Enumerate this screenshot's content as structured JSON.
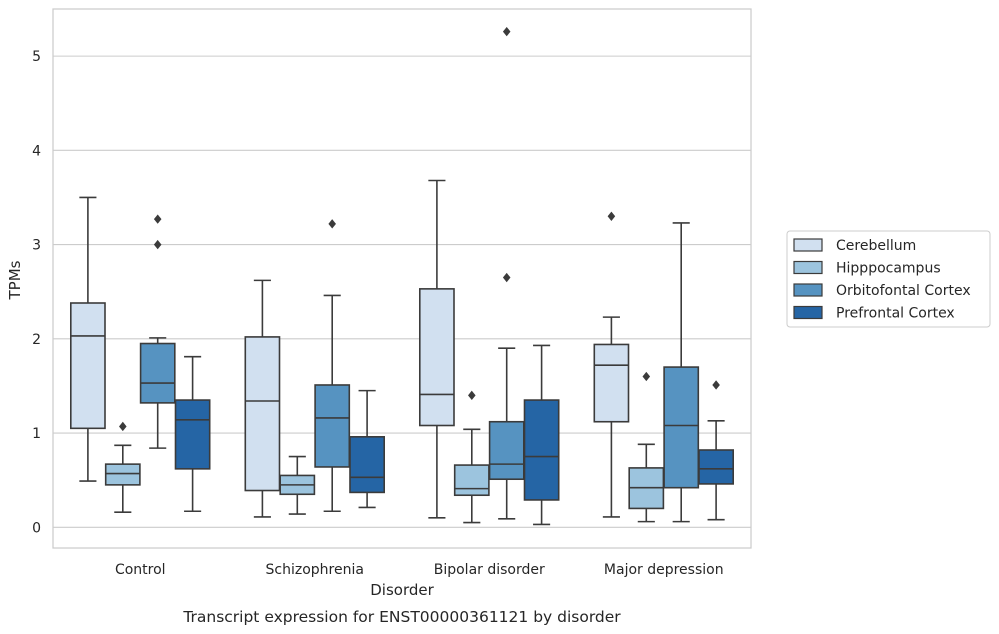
{
  "caption": "Transcript expression for ENST00000361121 by disorder",
  "chart_data": {
    "type": "box",
    "xlabel": "Disorder",
    "ylabel": "TPMs",
    "ylim": [
      -0.22,
      5.5
    ],
    "yticks": [
      0,
      1,
      2,
      3,
      4,
      5
    ],
    "grid": "horizontal",
    "legend_placement": "right",
    "categories": [
      "Control",
      "Schizophrenia",
      "Bipolar disorder",
      "Major depression"
    ],
    "series": [
      {
        "name": "Cerebellum",
        "color": "#d1e0f0",
        "boxes": [
          {
            "whislo": 0.49,
            "q1": 1.05,
            "med": 2.03,
            "q3": 2.38,
            "whishi": 3.5,
            "fliers": []
          },
          {
            "whislo": 0.11,
            "q1": 0.39,
            "med": 1.34,
            "q3": 2.02,
            "whishi": 2.62,
            "fliers": []
          },
          {
            "whislo": 0.1,
            "q1": 1.08,
            "med": 1.41,
            "q3": 2.53,
            "whishi": 3.68,
            "fliers": []
          },
          {
            "whislo": 0.11,
            "q1": 1.12,
            "med": 1.72,
            "q3": 1.94,
            "whishi": 2.23,
            "fliers": [
              3.3
            ]
          }
        ]
      },
      {
        "name": "Hipppocampus",
        "color": "#9cc4de",
        "boxes": [
          {
            "whislo": 0.16,
            "q1": 0.45,
            "med": 0.57,
            "q3": 0.67,
            "whishi": 0.87,
            "fliers": [
              1.07
            ]
          },
          {
            "whislo": 0.14,
            "q1": 0.35,
            "med": 0.45,
            "q3": 0.55,
            "whishi": 0.75,
            "fliers": []
          },
          {
            "whislo": 0.05,
            "q1": 0.34,
            "med": 0.41,
            "q3": 0.66,
            "whishi": 1.04,
            "fliers": [
              1.4
            ]
          },
          {
            "whislo": 0.06,
            "q1": 0.2,
            "med": 0.42,
            "q3": 0.63,
            "whishi": 0.88,
            "fliers": [
              1.6
            ]
          }
        ]
      },
      {
        "name": "Orbitofontal Cortex",
        "color": "#5693c1",
        "boxes": [
          {
            "whislo": 0.84,
            "q1": 1.32,
            "med": 1.53,
            "q3": 1.95,
            "whishi": 2.01,
            "fliers": [
              3.0,
              3.27
            ]
          },
          {
            "whislo": 0.17,
            "q1": 0.64,
            "med": 1.16,
            "q3": 1.51,
            "whishi": 2.46,
            "fliers": [
              3.22
            ]
          },
          {
            "whislo": 0.09,
            "q1": 0.51,
            "med": 0.67,
            "q3": 1.12,
            "whishi": 1.9,
            "fliers": [
              2.65,
              5.26
            ]
          },
          {
            "whislo": 0.06,
            "q1": 0.42,
            "med": 1.08,
            "q3": 1.7,
            "whishi": 3.23,
            "fliers": []
          }
        ]
      },
      {
        "name": "Prefrontal Cortex",
        "color": "#2565a5",
        "boxes": [
          {
            "whislo": 0.17,
            "q1": 0.62,
            "med": 1.14,
            "q3": 1.35,
            "whishi": 1.81,
            "fliers": []
          },
          {
            "whislo": 0.21,
            "q1": 0.37,
            "med": 0.53,
            "q3": 0.96,
            "whishi": 1.45,
            "fliers": []
          },
          {
            "whislo": 0.03,
            "q1": 0.29,
            "med": 0.75,
            "q3": 1.35,
            "whishi": 1.93,
            "fliers": []
          },
          {
            "whislo": 0.08,
            "q1": 0.46,
            "med": 0.62,
            "q3": 0.82,
            "whishi": 1.13,
            "fliers": [
              1.51
            ]
          }
        ]
      }
    ]
  }
}
